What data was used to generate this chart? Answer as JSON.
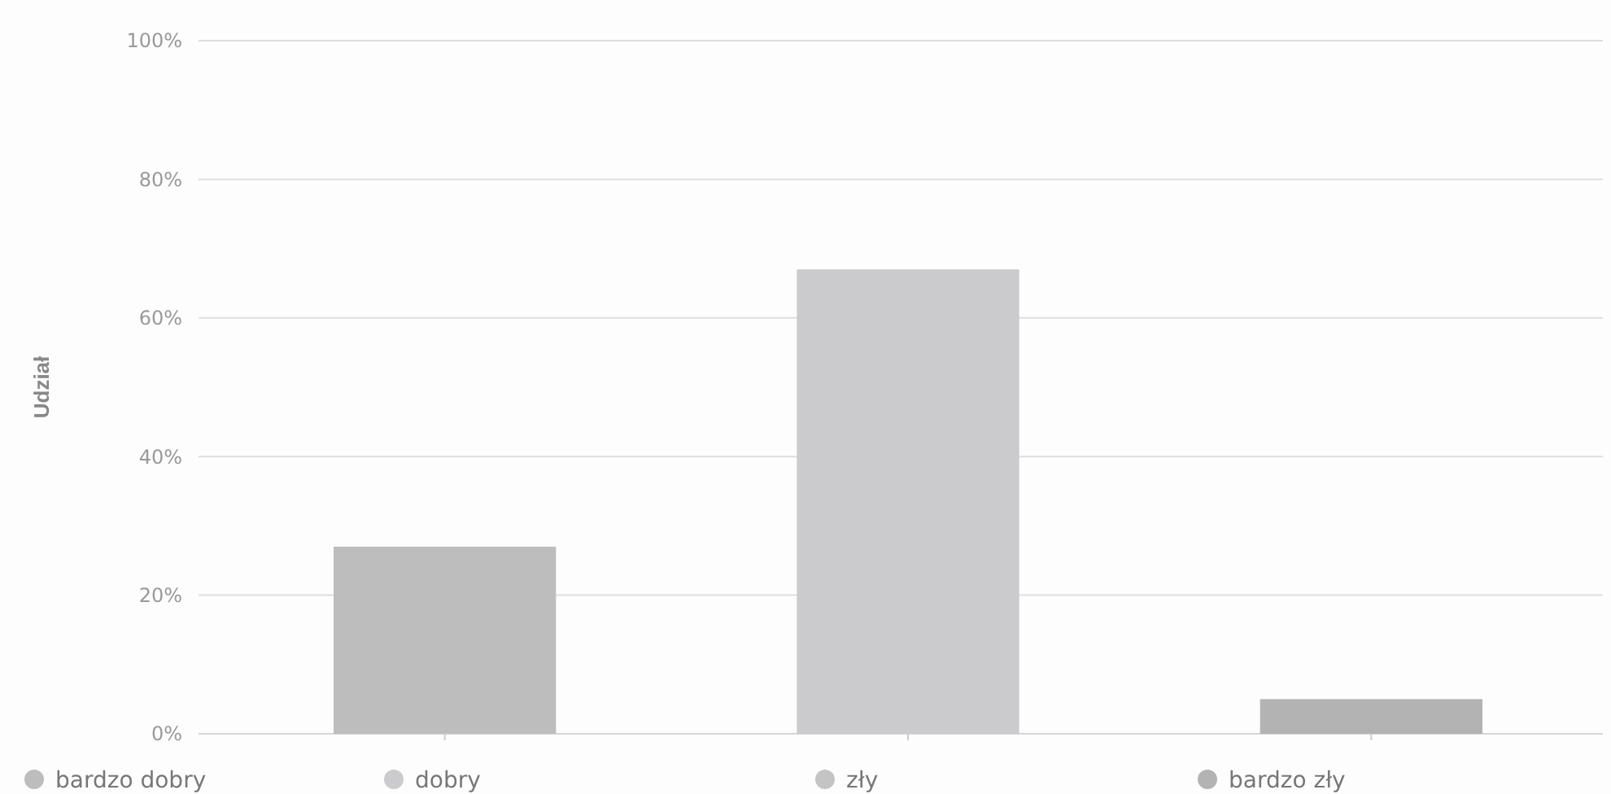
{
  "chart_data": {
    "type": "bar",
    "ylabel": "Udział",
    "categories": [
      null,
      null,
      null
    ],
    "stacked": true,
    "series": [
      {
        "name": "bardzo dobry",
        "color": "#bdbdbd",
        "values": [
          27,
          null,
          null
        ]
      },
      {
        "name": "dobry",
        "color": "#cbcbcd",
        "values": [
          null,
          67,
          null
        ]
      },
      {
        "name": "zły",
        "color": "#c4c4c4",
        "values": [
          null,
          null,
          null
        ]
      },
      {
        "name": "bardzo zły",
        "color": "#b3b3b3",
        "values": [
          null,
          null,
          5
        ]
      }
    ],
    "ylim": [
      0,
      100
    ],
    "yticks": [
      {
        "value": 0,
        "label": "0%"
      },
      {
        "value": 20,
        "label": "20%"
      },
      {
        "value": 40,
        "label": "40%"
      },
      {
        "value": 60,
        "label": "60%"
      },
      {
        "value": 80,
        "label": "80%"
      },
      {
        "value": 100,
        "label": "100%"
      }
    ],
    "grid": "y",
    "legend": "bottom"
  }
}
